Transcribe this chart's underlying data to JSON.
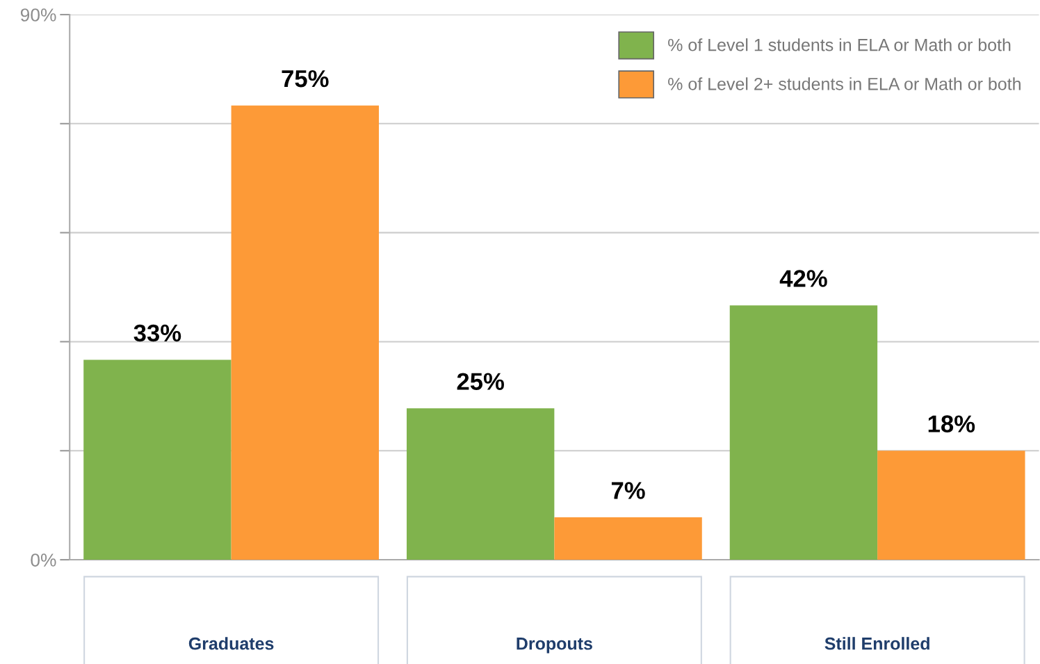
{
  "chart_data": {
    "type": "bar",
    "categories": [
      "Graduates",
      "Dropouts",
      "Still Enrolled"
    ],
    "series": [
      {
        "name": "% of Level 1 students in ELA or Math or both",
        "color": "#80b34d",
        "values": [
          33,
          25,
          42
        ],
        "value_labels": [
          "33%",
          "25%",
          "42%"
        ]
      },
      {
        "name": "% of Level 2+ students in ELA or Math or both",
        "color": "#fd9a37",
        "values": [
          75,
          7,
          18
        ],
        "value_labels": [
          "75%",
          "7%",
          "18%"
        ]
      }
    ],
    "ylim": [
      0,
      90
    ],
    "yticks": [
      {
        "value": 0,
        "label": "0%"
      },
      {
        "value": 18,
        "label": null
      },
      {
        "value": 36,
        "label": null
      },
      {
        "value": 54,
        "label": null
      },
      {
        "value": 72,
        "label": null
      },
      {
        "value": 90,
        "label": "90%"
      }
    ],
    "grid": "y",
    "legend": "top right"
  }
}
